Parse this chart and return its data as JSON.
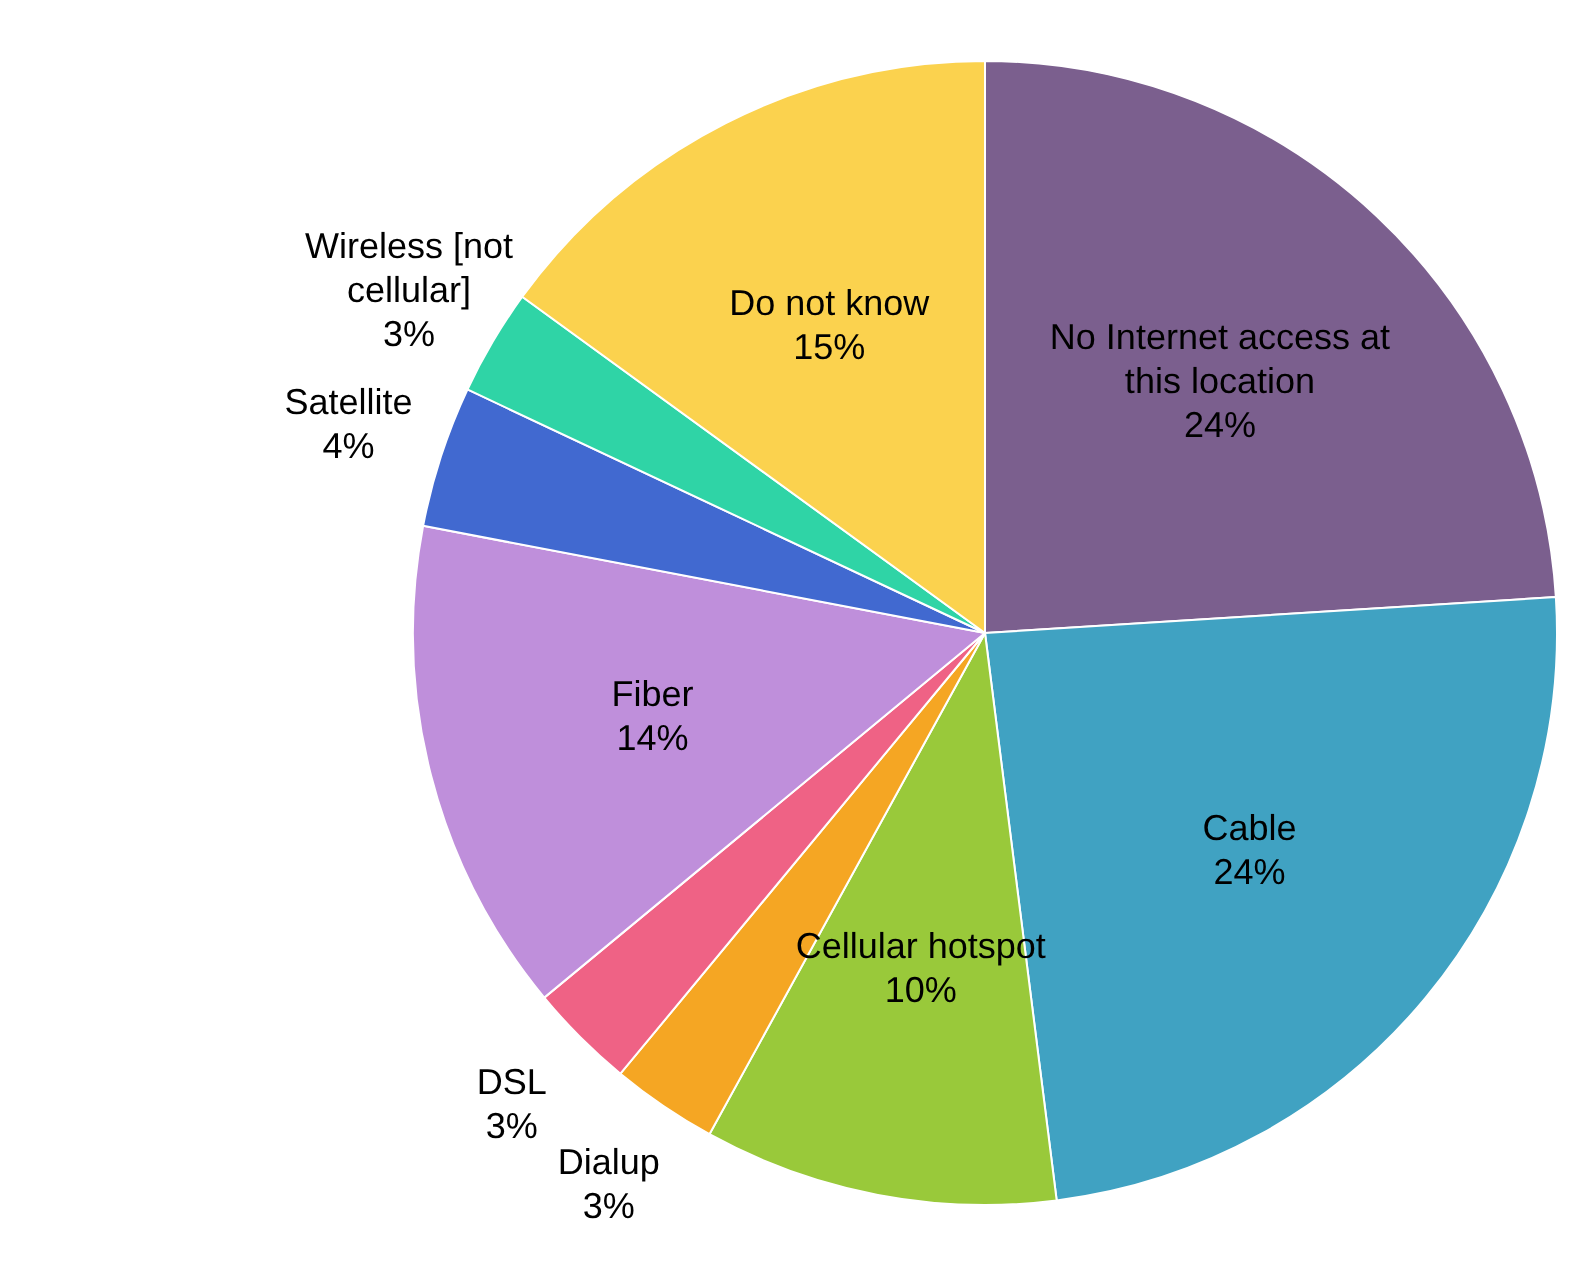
{
  "chart_data": {
    "type": "pie",
    "categories": [
      "No Internet access at this location",
      "Cable",
      "Cellular hotspot",
      "Dialup",
      "DSL",
      "Fiber",
      "Satellite",
      "Wireless [not cellular]",
      "Do not know"
    ],
    "values": [
      24,
      24,
      10,
      3,
      3,
      14,
      4,
      3,
      15
    ],
    "value_labels": [
      "24%",
      "24%",
      "10%",
      "3%",
      "3%",
      "14%",
      "4%",
      "3%",
      "15%"
    ],
    "colors": [
      "#7b5f8e",
      "#40a2c2",
      "#99c93a",
      "#f5a623",
      "#ef6285",
      "#bf8fdb",
      "#4169d0",
      "#2fd4a6",
      "#fbd24e"
    ]
  }
}
